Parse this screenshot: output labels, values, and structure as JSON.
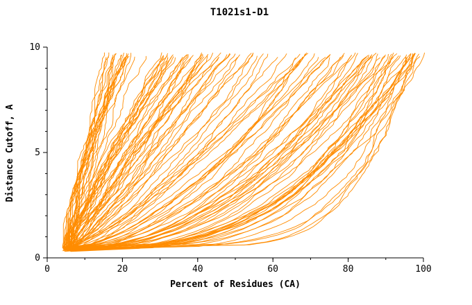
{
  "chart_data": {
    "type": "line",
    "title": "T1021s1-D1",
    "xlabel": "Percent of Residues (CA)",
    "ylabel": "Distance Cutoff, A",
    "xlim": [
      0,
      100
    ],
    "ylim": [
      0,
      10
    ],
    "x_ticks": [
      0,
      20,
      40,
      60,
      80,
      100
    ],
    "x_minor_step": 10,
    "y_ticks": [
      0,
      5,
      10
    ],
    "y_minor_step": 1,
    "grid": false,
    "legend": "none",
    "line_color": "#ff8c00",
    "axis_color": "#000000",
    "curve_model": {
      "description": "Ensemble of ~120 monotonically rising per-model curves (distance cutoff vs percent of CA residues). Every curve starts near (5%, 0.4 A) and climbs to ~9.6 A; the percent at which a curve reaches the top is bimodal: a steep cluster topping out around 16-46% and a dense cluster around 60-100%, leaving a sparse region near 46-60%.",
      "seed": 1021,
      "count": 120,
      "x_start": [
        4,
        7
      ],
      "y_start": [
        0.3,
        0.55
      ],
      "y_top": [
        9.5,
        9.75
      ],
      "left_frac": 0.36,
      "left_range": [
        16,
        46
      ],
      "mid_frac": 0.08,
      "mid_range": [
        46,
        60
      ],
      "right_range": [
        60,
        100
      ]
    }
  }
}
